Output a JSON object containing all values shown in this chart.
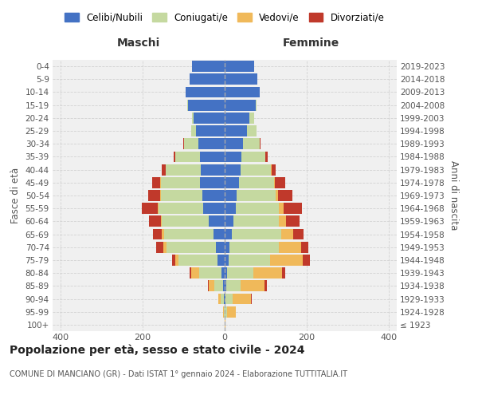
{
  "age_groups": [
    "100+",
    "95-99",
    "90-94",
    "85-89",
    "80-84",
    "75-79",
    "70-74",
    "65-69",
    "60-64",
    "55-59",
    "50-54",
    "45-49",
    "40-44",
    "35-39",
    "30-34",
    "25-29",
    "20-24",
    "15-19",
    "10-14",
    "5-9",
    "0-4"
  ],
  "birth_years": [
    "≤ 1923",
    "1924-1928",
    "1929-1933",
    "1934-1938",
    "1939-1943",
    "1944-1948",
    "1949-1953",
    "1954-1958",
    "1959-1963",
    "1964-1968",
    "1969-1973",
    "1974-1978",
    "1979-1983",
    "1984-1988",
    "1989-1993",
    "1994-1998",
    "1999-2003",
    "2004-2008",
    "2009-2013",
    "2014-2018",
    "2019-2023"
  ],
  "maschi": {
    "celibi": [
      0,
      0,
      2,
      4,
      8,
      18,
      22,
      28,
      38,
      52,
      55,
      60,
      58,
      60,
      65,
      70,
      75,
      90,
      95,
      85,
      80
    ],
    "coniugati": [
      0,
      2,
      8,
      22,
      55,
      95,
      120,
      120,
      115,
      110,
      100,
      95,
      85,
      60,
      35,
      12,
      5,
      2,
      0,
      0,
      0
    ],
    "vedovi": [
      0,
      2,
      5,
      12,
      18,
      8,
      8,
      5,
      3,
      2,
      2,
      2,
      0,
      0,
      0,
      0,
      0,
      0,
      0,
      0,
      0
    ],
    "divorziati": [
      0,
      0,
      0,
      2,
      5,
      8,
      18,
      22,
      28,
      38,
      30,
      20,
      10,
      5,
      2,
      0,
      0,
      0,
      0,
      0,
      0
    ]
  },
  "femmine": {
    "nubili": [
      0,
      0,
      2,
      3,
      5,
      10,
      12,
      18,
      22,
      28,
      30,
      35,
      38,
      40,
      45,
      55,
      60,
      75,
      85,
      80,
      72
    ],
    "coniugate": [
      0,
      5,
      18,
      35,
      65,
      100,
      120,
      120,
      110,
      105,
      95,
      85,
      75,
      60,
      40,
      22,
      12,
      3,
      0,
      0,
      0
    ],
    "vedove": [
      2,
      22,
      45,
      60,
      70,
      80,
      55,
      30,
      18,
      10,
      5,
      3,
      2,
      0,
      0,
      0,
      0,
      0,
      0,
      0,
      0
    ],
    "divorziate": [
      0,
      0,
      2,
      5,
      8,
      18,
      18,
      25,
      32,
      45,
      35,
      25,
      10,
      5,
      2,
      0,
      0,
      0,
      0,
      0,
      0
    ]
  },
  "colors": {
    "celibi": "#4472c4",
    "coniugati": "#c5d9a0",
    "vedovi": "#f0b95a",
    "divorziati": "#c0392b"
  },
  "xlim": 420,
  "title": "Popolazione per età, sesso e stato civile - 2024",
  "subtitle": "COMUNE DI MANCIANO (GR) - Dati ISTAT 1° gennaio 2024 - Elaborazione TUTTITALIA.IT",
  "xlabel_left": "Maschi",
  "xlabel_right": "Femmine",
  "ylabel_left": "Fasce di età",
  "ylabel_right": "Anni di nascita",
  "background_color": "#ffffff",
  "grid_color": "#cccccc",
  "ax_bg_color": "#f0f0f0"
}
